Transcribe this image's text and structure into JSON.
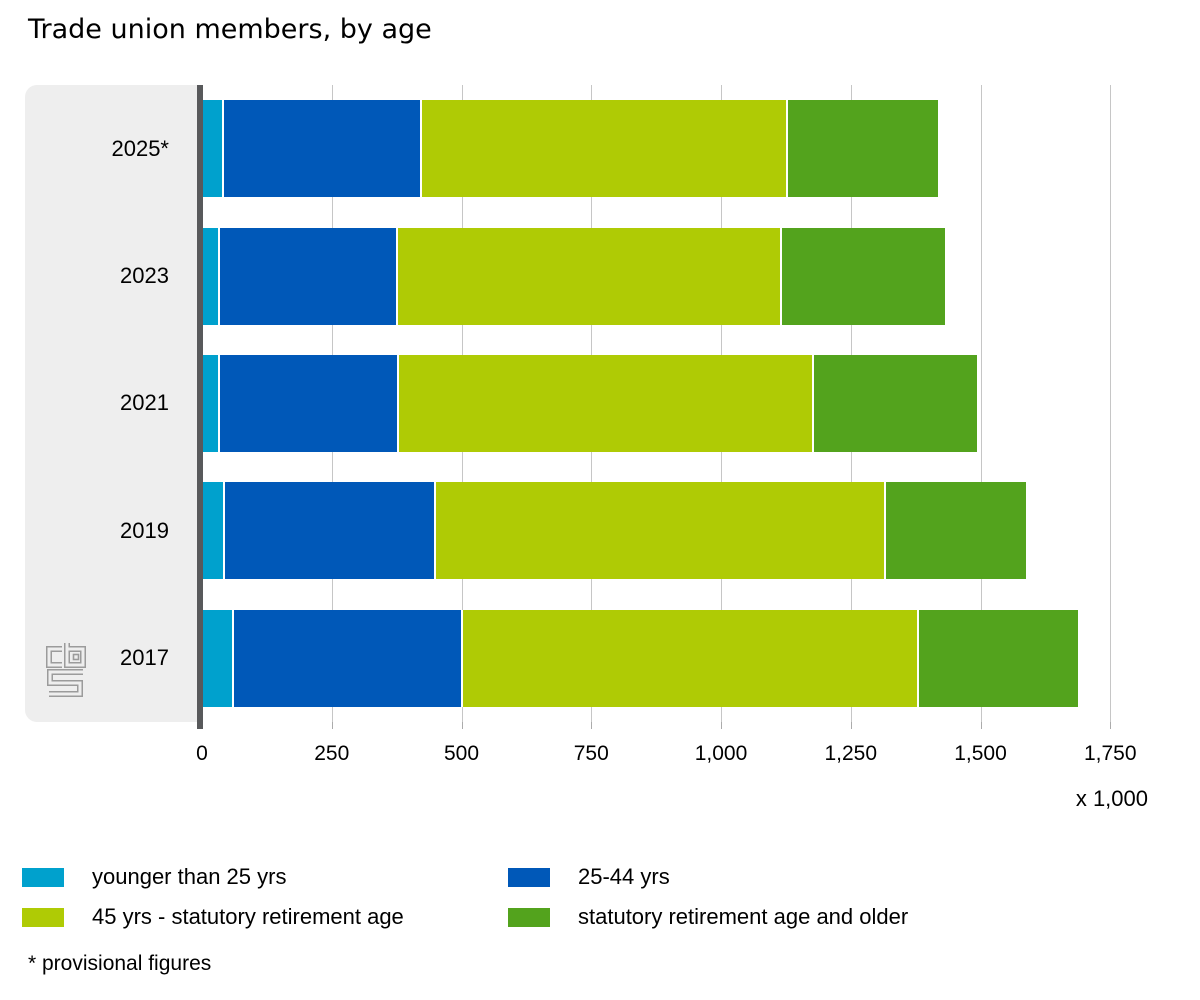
{
  "title": "Trade union members, by age",
  "footnote": "* provisional figures",
  "logo": {
    "icon": "cbs-logo"
  },
  "colors": {
    "panel_background": "#eeeeee",
    "axis_line": "#58595b",
    "gridline": "#c6c6c6",
    "tick": "#ababab",
    "segment_separator": "#ffffff",
    "logo_gray": "#9b9b9b"
  },
  "chart_data": {
    "type": "bar",
    "orientation": "horizontal",
    "stacked": true,
    "title": "Trade union members, by age",
    "unit_label": "x 1,000",
    "categories": [
      "2025*",
      "2023",
      "2021",
      "2019",
      "2017"
    ],
    "series": [
      {
        "name": "younger than 25 yrs",
        "color": "#00a1cd",
        "values": [
          37,
          29,
          29,
          38,
          56
        ]
      },
      {
        "name": "25-44 yrs",
        "color": "#0058b8",
        "values": [
          381,
          343,
          345,
          407,
          441
        ]
      },
      {
        "name": "45 yrs - statutory retirement age",
        "color": "#afcb05",
        "values": [
          706,
          740,
          799,
          867,
          879
        ]
      },
      {
        "name": "statutory retirement age and older",
        "color": "#53a31d",
        "values": [
          293,
          317,
          318,
          273,
          310
        ]
      }
    ],
    "xlim": [
      0,
      1750
    ],
    "x_ticks": [
      "0",
      "250",
      "500",
      "750",
      "1,000",
      "1,250",
      "1,500",
      "1,750"
    ],
    "x_tick_values": [
      0,
      250,
      500,
      750,
      1000,
      1250,
      1500,
      1750
    ],
    "grid": true,
    "legend_position": "bottom"
  }
}
